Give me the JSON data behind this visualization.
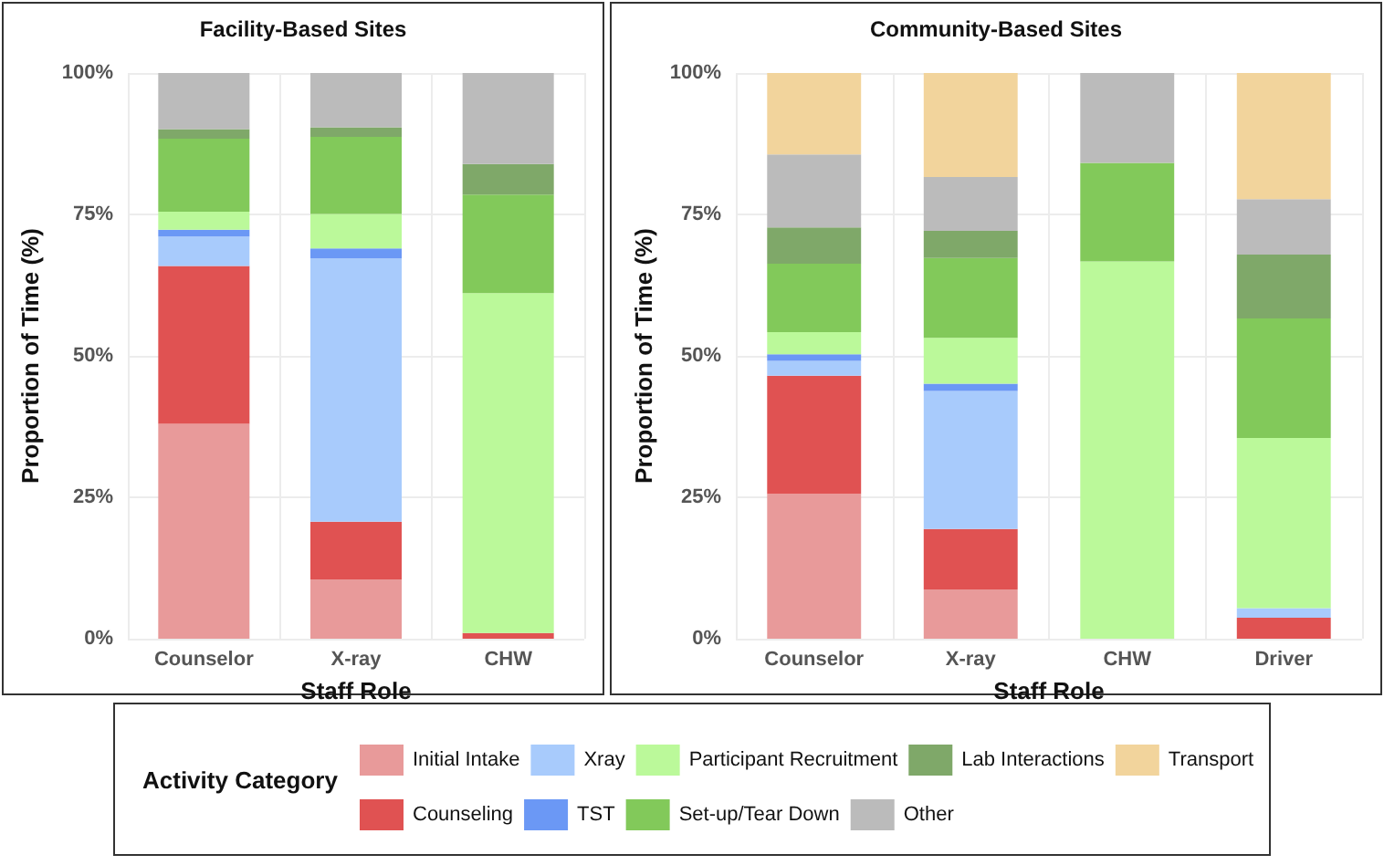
{
  "chart_data": [
    {
      "type": "bar",
      "title": "Facility-Based Sites",
      "xlabel": "Staff Role",
      "ylabel": "Proportion of Time (%)",
      "stacked": true,
      "categories": [
        "Counselor",
        "X-ray",
        "CHW"
      ],
      "ylim": [
        0,
        100
      ],
      "yticks": [
        {
          "value": 0,
          "label": "0%"
        },
        {
          "value": 25,
          "label": "25%"
        },
        {
          "value": 50,
          "label": "50%"
        },
        {
          "value": 75,
          "label": "75%"
        },
        {
          "value": 100,
          "label": "100%"
        }
      ],
      "grid": true,
      "legend": false,
      "series": [
        {
          "color": "#e89a9a",
          "values": [
            38.0,
            10.5,
            0
          ]
        },
        {
          "color": "#e05252",
          "values": [
            27.9,
            10.2,
            1.0
          ]
        },
        {
          "color": "#a8cbfc",
          "values": [
            5.2,
            46.5,
            0
          ]
        },
        {
          "color": "#6b98f5",
          "values": [
            1.2,
            1.8,
            0
          ]
        },
        {
          "color": "#bbf99a",
          "values": [
            3.2,
            6.1,
            60.1
          ]
        },
        {
          "color": "#82c95a",
          "values": [
            12.9,
            13.6,
            17.4
          ]
        },
        {
          "color": "#7fa869",
          "values": [
            1.7,
            1.7,
            5.4
          ]
        },
        {
          "color": "#bbbbbb",
          "values": [
            9.9,
            9.6,
            16.1
          ]
        }
      ]
    },
    {
      "type": "bar",
      "title": "Community-Based Sites",
      "xlabel": "Staff Role",
      "ylabel": "Proportion of Time (%)",
      "legend_title": "Activity Category",
      "stacked": true,
      "categories": [
        "Counselor",
        "X-ray",
        "CHW",
        "Driver"
      ],
      "ylim": [
        0,
        100
      ],
      "yticks": [
        {
          "value": 0,
          "label": "0%"
        },
        {
          "value": 25,
          "label": "25%"
        },
        {
          "value": 50,
          "label": "50%"
        },
        {
          "value": 75,
          "label": "75%"
        },
        {
          "value": 100,
          "label": "100%"
        }
      ],
      "grid": true,
      "legend": "bottom",
      "series": [
        {
          "name": "Initial Intake",
          "color": "#e89a9a",
          "values": [
            25.6,
            8.7,
            0,
            0
          ]
        },
        {
          "name": "Counseling",
          "color": "#e05252",
          "values": [
            20.9,
            10.7,
            0,
            3.7
          ]
        },
        {
          "name": "Xray",
          "color": "#a8cbfc",
          "values": [
            2.6,
            24.4,
            0,
            1.7
          ]
        },
        {
          "name": "TST",
          "color": "#6b98f5",
          "values": [
            1.2,
            1.3,
            0,
            0
          ]
        },
        {
          "name": "Participant Recruitment",
          "color": "#bbf99a",
          "values": [
            3.9,
            8.1,
            66.7,
            30.1
          ]
        },
        {
          "name": "Set-up/Tear Down",
          "color": "#82c95a",
          "values": [
            12.1,
            14.1,
            17.4,
            21.1
          ]
        },
        {
          "name": "Lab Interactions",
          "color": "#7fa869",
          "values": [
            6.4,
            4.8,
            0,
            11.3
          ]
        },
        {
          "name": "Other",
          "color": "#bbbbbb",
          "values": [
            12.9,
            9.5,
            15.9,
            9.8
          ]
        },
        {
          "name": "Transport",
          "color": "#f2d49c",
          "values": [
            14.4,
            18.4,
            0,
            22.3
          ]
        }
      ]
    }
  ]
}
